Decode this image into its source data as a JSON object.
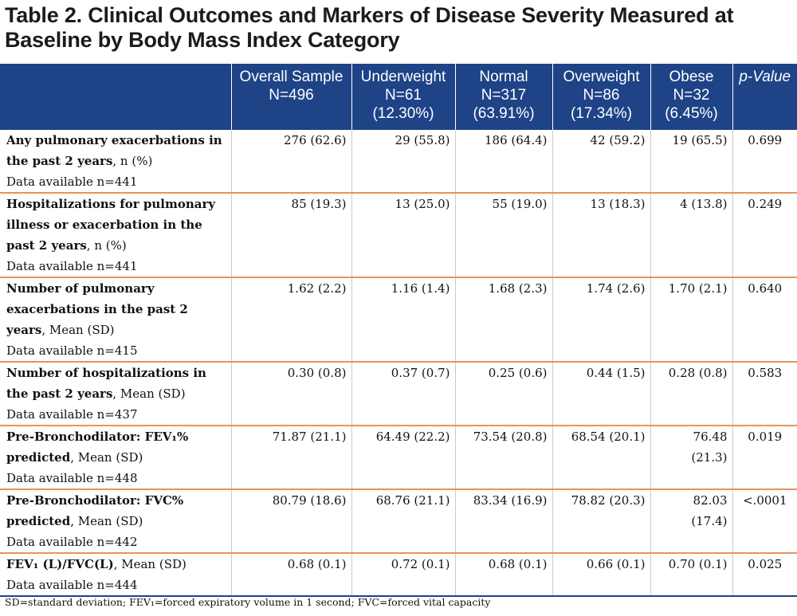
{
  "title": "Table 2. Clinical Outcomes and Markers of Disease Severity Measured at Baseline by Body Mass Index Category",
  "headers": [
    {
      "line1": "Overall Sample",
      "line2": "N=496",
      "line3": ""
    },
    {
      "line1": "Underweight",
      "line2": "N=61",
      "line3": "(12.30%)"
    },
    {
      "line1": "Normal",
      "line2": "N=317",
      "line3": "(63.91%)"
    },
    {
      "line1": "Overweight",
      "line2": "N=86",
      "line3": "(17.34%)"
    },
    {
      "line1": "Obese",
      "line2": "N=32",
      "line3": "(6.45%)"
    },
    {
      "line1": "p-Value",
      "line2": "",
      "line3": ""
    }
  ],
  "rows": [
    {
      "label_bold": "Any pulmonary exacerbations in the past 2 years",
      "label_rest": ", n (%)",
      "available": "Data available n=441",
      "values": [
        "276 (62.6)",
        "29 (55.8)",
        "186 (64.4)",
        "42 (59.2)",
        "19 (65.5)"
      ],
      "p": "0.699"
    },
    {
      "label_bold": "Hospitalizations for pulmonary illness or exacerbation in the past 2 years",
      "label_rest": ", n (%)",
      "available": "Data available n=441",
      "values": [
        "85 (19.3)",
        "13 (25.0)",
        "55 (19.0)",
        "13 (18.3)",
        "4 (13.8)"
      ],
      "p": "0.249"
    },
    {
      "label_bold": "Number of pulmonary exacerbations in the past 2 years",
      "label_rest": ", Mean (SD)",
      "available": "Data available n=415",
      "values": [
        "1.62 (2.2)",
        "1.16 (1.4)",
        "1.68 (2.3)",
        "1.74 (2.6)",
        "1.70 (2.1)"
      ],
      "p": "0.640"
    },
    {
      "label_bold": "Number of hospitalizations in the past 2 years",
      "label_rest": ", Mean (SD)",
      "available": "Data available n=437",
      "values": [
        "0.30 (0.8)",
        "0.37 (0.7)",
        "0.25 (0.6)",
        "0.44 (1.5)",
        "0.28 (0.8)"
      ],
      "p": "0.583"
    },
    {
      "label_bold": "Pre-Bronchodilator: FEV₁% predicted",
      "label_rest": ", Mean (SD)",
      "available": "Data available n=448",
      "values": [
        "71.87 (21.1)",
        "64.49 (22.2)",
        "73.54 (20.8)",
        "68.54 (20.1)",
        "76.48 (21.3)"
      ],
      "p": "0.019"
    },
    {
      "label_bold": "Pre-Bronchodilator: FVC% predicted",
      "label_rest": ", Mean (SD)",
      "available": "Data available n=442",
      "values": [
        "80.79 (18.6)",
        "68.76 (21.1)",
        "83.34 (16.9)",
        "78.82 (20.3)",
        "82.03 (17.4)"
      ],
      "p": "<.0001"
    },
    {
      "label_bold": "FEV₁ (L)/FVC(L)",
      "label_rest": ", Mean (SD)",
      "available": "Data available n=444",
      "values": [
        "0.68 (0.1)",
        "0.72 (0.1)",
        "0.68 (0.1)",
        "0.66 (0.1)",
        "0.70 (0.1)"
      ],
      "p": "0.025"
    }
  ],
  "footnote": "SD=standard deviation; FEV₁=forced expiratory volume in 1 second; FVC=forced vital capacity",
  "colors": {
    "header_bg": "#1e4387",
    "row_divider": "#e8935a"
  }
}
